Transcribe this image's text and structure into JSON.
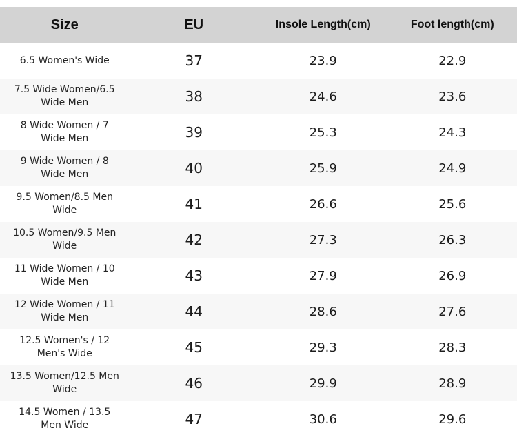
{
  "chart_data": {
    "type": "table",
    "columns": [
      "Size",
      "EU",
      "Insole Length(cm)",
      "Foot length(cm)"
    ],
    "column_keys": [
      "size",
      "eu",
      "insole",
      "foot"
    ],
    "rows": [
      {
        "size": "6.5 Women's Wide",
        "eu": "37",
        "insole": "23.9",
        "foot": "22.9"
      },
      {
        "size": "7.5 Wide Women/6.5 Wide Men",
        "eu": "38",
        "insole": "24.6",
        "foot": "23.6"
      },
      {
        "size": "8 Wide Women / 7 Wide Men",
        "eu": "39",
        "insole": "25.3",
        "foot": "24.3"
      },
      {
        "size": "9 Wide Women / 8 Wide Men",
        "eu": "40",
        "insole": "25.9",
        "foot": "24.9"
      },
      {
        "size": "9.5 Women/8.5 Men Wide",
        "eu": "41",
        "insole": "26.6",
        "foot": "25.6"
      },
      {
        "size": "10.5 Women/9.5 Men Wide",
        "eu": "42",
        "insole": "27.3",
        "foot": "26.3"
      },
      {
        "size": "11 Wide Women / 10 Wide Men",
        "eu": "43",
        "insole": "27.9",
        "foot": "26.9"
      },
      {
        "size": "12 Wide Women / 11 Wide Men",
        "eu": "44",
        "insole": "28.6",
        "foot": "27.6"
      },
      {
        "size": "12.5 Women's / 12 Men's Wide",
        "eu": "45",
        "insole": "29.3",
        "foot": "28.3"
      },
      {
        "size": "13.5 Women/12.5 Men Wide",
        "eu": "46",
        "insole": "29.9",
        "foot": "28.9"
      },
      {
        "size": "14.5 Women / 13.5 Men Wide",
        "eu": "47",
        "insole": "30.6",
        "foot": "29.6"
      }
    ],
    "layout": {
      "header_bg": "#d3d3d3",
      "row_alt_bg": "#f7f7f7",
      "row_bg": "#ffffff",
      "text_color": "#1c1c1c",
      "grid": "off",
      "alignment": "center"
    }
  }
}
